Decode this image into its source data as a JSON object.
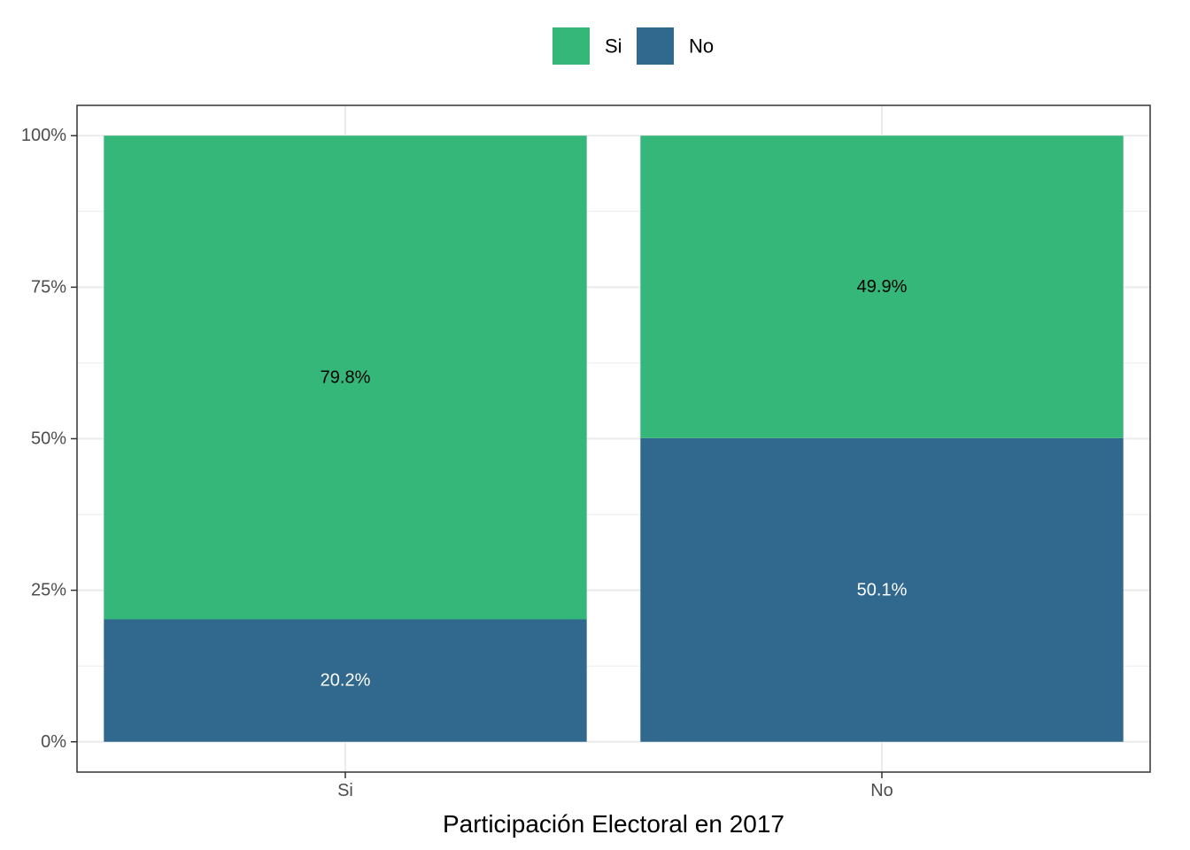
{
  "chart_data": {
    "type": "bar",
    "stacked": true,
    "percent": true,
    "categories": [
      "Si",
      "No"
    ],
    "series": [
      {
        "name": "No",
        "color": "#31688e",
        "label_color": "#ffffff",
        "values": [
          20.2,
          50.1
        ],
        "labels": [
          "20.2%",
          "50.1%"
        ]
      },
      {
        "name": "Si",
        "color": "#35b779",
        "label_color": "#000000",
        "values": [
          79.8,
          49.9
        ],
        "labels": [
          "79.8%",
          "49.9%"
        ]
      }
    ],
    "legend": {
      "position": "top",
      "items": [
        {
          "name": "Si",
          "color": "#35b779"
        },
        {
          "name": "No",
          "color": "#31688e"
        }
      ]
    },
    "xlabel": "Participación Electoral en 2017",
    "ylabel": "",
    "ylim": [
      -5,
      105
    ],
    "yticks": [
      0,
      25,
      50,
      75,
      100
    ],
    "ytick_labels": [
      "0%",
      "25%",
      "50%",
      "75%",
      "100%"
    ],
    "grid": true
  }
}
